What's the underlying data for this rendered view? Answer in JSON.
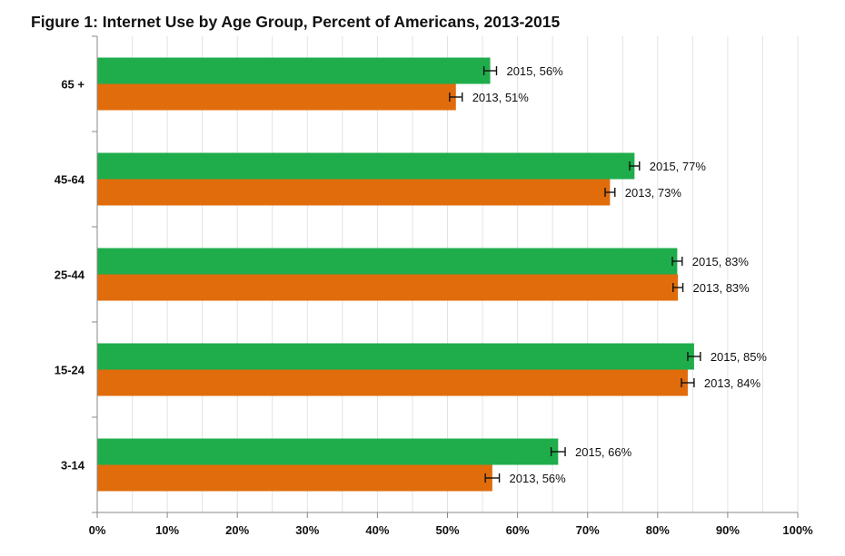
{
  "chart_data": {
    "type": "bar",
    "orientation": "horizontal",
    "title": "Figure 1: Internet Use by Age Group, Percent of Americans, 2013-2015",
    "xlabel": "",
    "ylabel": "",
    "xlim": [
      0,
      100
    ],
    "x_ticks": [
      "0%",
      "10%",
      "20%",
      "30%",
      "40%",
      "50%",
      "60%",
      "70%",
      "80%",
      "90%",
      "100%"
    ],
    "categories": [
      "65 +",
      "45-64",
      "25-44",
      "15-24",
      "3-14"
    ],
    "grid": true,
    "error_bars": true,
    "series": [
      {
        "year": "2015",
        "color": "#1fad4b",
        "values": [
          56,
          77,
          83,
          85,
          66
        ],
        "point_estimates": [
          56.1,
          76.7,
          82.8,
          85.2,
          65.8
        ],
        "error_margin": [
          0.9,
          0.7,
          0.7,
          0.9,
          1.0
        ],
        "labels": [
          "2015, 56%",
          "2015, 77%",
          "2015, 83%",
          "2015, 85%",
          "2015, 66%"
        ]
      },
      {
        "year": "2013",
        "color": "#e06c0c",
        "values": [
          51,
          73,
          83,
          84,
          56
        ],
        "point_estimates": [
          51.2,
          73.2,
          82.9,
          84.3,
          56.4
        ],
        "error_margin": [
          0.9,
          0.7,
          0.7,
          0.9,
          1.0
        ],
        "labels": [
          "2013, 51%",
          "2013, 73%",
          "2013, 83%",
          "2013, 84%",
          "2013, 56%"
        ]
      }
    ]
  }
}
